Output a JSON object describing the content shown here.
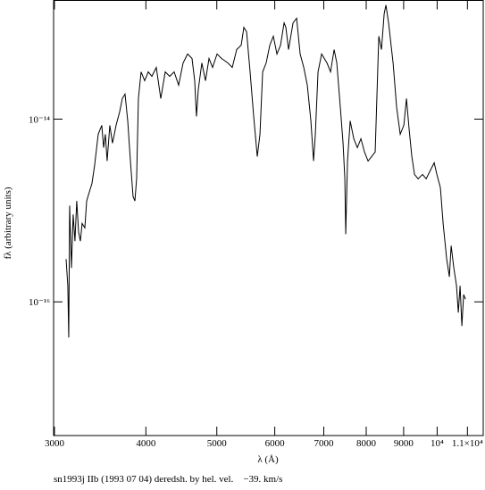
{
  "chart_data": {
    "type": "line",
    "x_label": "λ (Å)",
    "y_label": "fλ (arbitrary units)",
    "caption": "sn1993j IIb (1993 07 04) deredsh. by hel. vel.    −39. km/s",
    "log_x": true,
    "log_y": true,
    "color": "#000000",
    "xlim": [
      2992,
      11560
    ],
    "ylim": [
      3.44e-18,
      1.99e-13
    ],
    "xticks": [
      3000,
      4000,
      5000,
      6000,
      7000,
      8000,
      9000,
      {
        "value": 10000,
        "label": "10⁴"
      },
      {
        "value": 11000,
        "label": "1.1×10⁴"
      }
    ],
    "yticks": [
      {
        "value": 1e-14,
        "label": "10⁻¹⁴"
      },
      {
        "value": 1e-16,
        "label": "10⁻¹⁶"
      }
    ],
    "x": [
      3112,
      3129,
      3138,
      3147,
      3165,
      3182,
      3200,
      3218,
      3237,
      3255,
      3273,
      3301,
      3320,
      3347,
      3376,
      3404,
      3443,
      3482,
      3502,
      3521,
      3541,
      3571,
      3601,
      3622,
      3642,
      3683,
      3714,
      3746,
      3778,
      3810,
      3842,
      3864,
      3885,
      3907,
      3940,
      3985,
      4030,
      4076,
      4133,
      4192,
      4251,
      4311,
      4372,
      4434,
      4497,
      4561,
      4625,
      4664,
      4690,
      4717,
      4770,
      4825,
      4879,
      4934,
      5004,
      5075,
      5176,
      5249,
      5323,
      5399,
      5444,
      5491,
      5552,
      5615,
      5679,
      5727,
      5776,
      5840,
      5907,
      5973,
      6041,
      6110,
      6179,
      6213,
      6266,
      6355,
      6427,
      6499,
      6573,
      6647,
      6722,
      6779,
      6817,
      6875,
      6953,
      7071,
      7151,
      7232,
      7293,
      7375,
      7438,
      7480,
      7501,
      7543,
      7607,
      7693,
      7780,
      7868,
      7957,
      8047,
      8138,
      8229,
      8323,
      8393,
      8465,
      8512,
      8584,
      8706,
      8804,
      8904,
      9005,
      9080,
      9158,
      9235,
      9313,
      9419,
      9552,
      9660,
      9797,
      9908,
      9992,
      10104,
      10190,
      10305,
      10393,
      10451,
      10539,
      10629,
      10689,
      10749,
      10809,
      10870,
      10932
    ],
    "values": [
      2.94e-16,
      1.5e-16,
      4.07e-17,
      1.13e-15,
      2.35e-16,
      9.04e-16,
      4.61e-16,
      1.27e-15,
      5.77e-16,
      4.61e-16,
      7.22e-16,
      6.45e-16,
      1.27e-15,
      1.58e-15,
      1.98e-15,
      3.11e-15,
      6.83e-15,
      8.55e-15,
      4.87e-15,
      6.83e-15,
      3.48e-15,
      8.55e-15,
      5.45e-15,
      6.83e-15,
      8.55e-15,
      1.2e-14,
      1.68e-14,
      1.88e-14,
      9.56e-15,
      3.48e-15,
      1.42e-15,
      1.27e-15,
      2.22e-15,
      1.68e-14,
      3.29e-14,
      2.63e-14,
      3.29e-14,
      2.94e-14,
      3.68e-14,
      1.68e-14,
      3.29e-14,
      2.94e-14,
      3.29e-14,
      2.35e-14,
      4.12e-14,
      5.16e-14,
      4.61e-14,
      2.63e-14,
      1.07e-14,
      2.1e-14,
      4.12e-14,
      2.63e-14,
      4.61e-14,
      3.68e-14,
      5.16e-14,
      4.61e-14,
      4.12e-14,
      3.68e-14,
      5.77e-14,
      6.45e-14,
      1.01e-13,
      9.04e-14,
      3.29e-14,
      1.07e-14,
      3.89e-15,
      6.83e-15,
      3.29e-14,
      4.12e-14,
      6.45e-14,
      8.08e-14,
      5.16e-14,
      6.45e-14,
      1.13e-13,
      1.01e-13,
      5.77e-14,
      1.13e-13,
      1.27e-13,
      5.16e-14,
      3.68e-14,
      2.35e-14,
      9.56e-15,
      3.48e-15,
      6.83e-15,
      3.29e-14,
      5.16e-14,
      4.12e-14,
      3.29e-14,
      5.77e-14,
      4.12e-14,
      1.34e-14,
      5.45e-15,
      2.22e-15,
      5.51e-16,
      3.48e-15,
      9.56e-15,
      6.1e-15,
      4.87e-15,
      6.1e-15,
      4.36e-15,
      3.48e-15,
      3.89e-15,
      4.36e-15,
      8.08e-14,
      5.77e-14,
      1.42e-13,
      1.77e-13,
      1.13e-13,
      4.12e-14,
      1.34e-14,
      6.83e-15,
      8.55e-15,
      1.68e-14,
      7.64e-15,
      3.89e-15,
      2.48e-15,
      2.22e-15,
      2.48e-15,
      2.22e-15,
      2.78e-15,
      3.33e-15,
      2.48e-15,
      1.77e-15,
      7.22e-16,
      2.94e-16,
      1.88e-16,
      4.12e-16,
      2.35e-16,
      1.5e-16,
      7.64e-17,
      1.5e-16,
      5.45e-17,
      1.2e-16,
      1.07e-16
    ]
  }
}
